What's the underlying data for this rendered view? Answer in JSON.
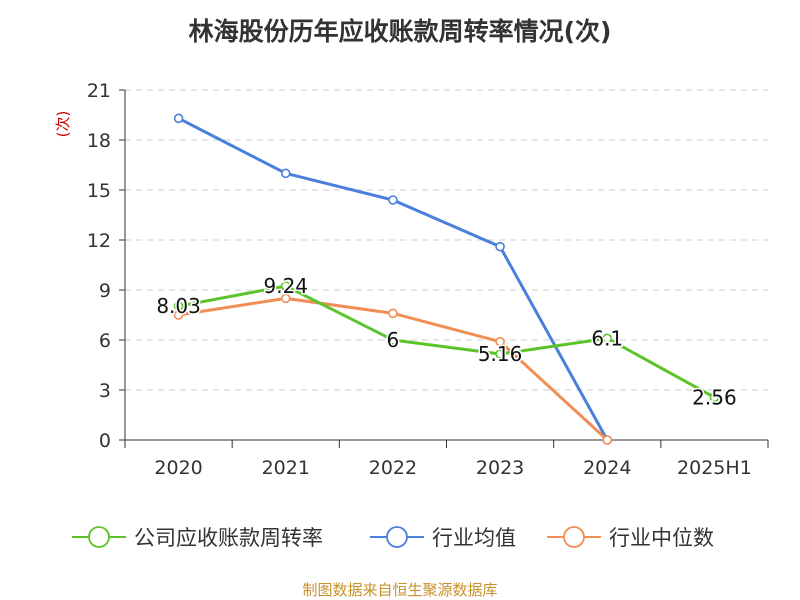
{
  "chart_data": {
    "type": "line",
    "title": "林海股份历年应收账款周转率情况(次)",
    "ylabel": "(次)",
    "categories": [
      "2020",
      "2021",
      "2022",
      "2023",
      "2024",
      "2025H1"
    ],
    "yticks": [
      0,
      3,
      6,
      9,
      12,
      15,
      18,
      21
    ],
    "ylim": [
      0,
      21
    ],
    "grid": true,
    "legend_position": "bottom",
    "series": [
      {
        "name": "公司应收账款周转率",
        "color": "#5cc42a",
        "values": [
          8.03,
          9.24,
          6,
          5.16,
          6.1,
          2.56
        ],
        "labels": [
          "8.03",
          "9.24",
          "6",
          "5.16",
          "6.1",
          "2.56"
        ]
      },
      {
        "name": "行业均值",
        "color": "#4a7fdb",
        "values": [
          19.3,
          16.0,
          14.4,
          11.6,
          0,
          null
        ],
        "labels": []
      },
      {
        "name": "行业中位数",
        "color": "#f28e55",
        "values": [
          7.5,
          8.5,
          7.6,
          5.9,
          0,
          null
        ],
        "labels": []
      }
    ]
  },
  "source_note": "制图数据来自恒生聚源数据库"
}
